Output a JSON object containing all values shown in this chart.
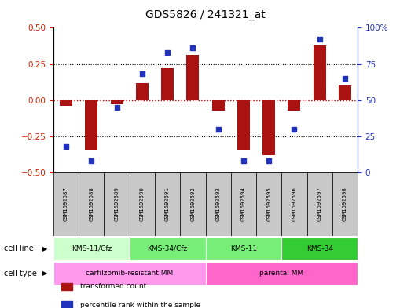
{
  "title": "GDS5826 / 241321_at",
  "samples": [
    "GSM1692587",
    "GSM1692588",
    "GSM1692589",
    "GSM1692590",
    "GSM1692591",
    "GSM1692592",
    "GSM1692593",
    "GSM1692594",
    "GSM1692595",
    "GSM1692596",
    "GSM1692597",
    "GSM1692598"
  ],
  "transformed_count": [
    -0.04,
    -0.35,
    -0.03,
    0.12,
    0.22,
    0.31,
    -0.07,
    -0.35,
    -0.38,
    -0.07,
    0.38,
    0.1
  ],
  "percentile_rank": [
    18,
    8,
    45,
    68,
    83,
    86,
    30,
    8,
    8,
    30,
    92,
    65
  ],
  "bar_color": "#aa1111",
  "dot_color": "#2233bb",
  "left_ylim": [
    -0.5,
    0.5
  ],
  "right_ylim": [
    0,
    100
  ],
  "left_yticks": [
    -0.5,
    -0.25,
    0,
    0.25,
    0.5
  ],
  "right_yticks": [
    0,
    25,
    50,
    75,
    100
  ],
  "right_yticklabels": [
    "0",
    "25",
    "50",
    "75",
    "100%"
  ],
  "cl_groups": [
    {
      "label": "KMS-11/Cfz",
      "start": 0,
      "end": 3,
      "color": "#ccffcc"
    },
    {
      "label": "KMS-34/Cfz",
      "start": 3,
      "end": 6,
      "color": "#77ee77"
    },
    {
      "label": "KMS-11",
      "start": 6,
      "end": 9,
      "color": "#77ee77"
    },
    {
      "label": "KMS-34",
      "start": 9,
      "end": 12,
      "color": "#33cc33"
    }
  ],
  "ct_groups": [
    {
      "label": "carfilzomib-resistant MM",
      "start": 0,
      "end": 6,
      "color": "#ff99ee"
    },
    {
      "label": "parental MM",
      "start": 6,
      "end": 12,
      "color": "#ff66cc"
    }
  ],
  "cell_line_row_label": "cell line",
  "cell_type_row_label": "cell type",
  "legend_items": [
    {
      "label": "transformed count",
      "color": "#aa1111"
    },
    {
      "label": "percentile rank within the sample",
      "color": "#2233bb"
    }
  ],
  "zero_line_color": "#cc0000",
  "hline_color": "#000000",
  "sample_box_color": "#c8c8c8"
}
